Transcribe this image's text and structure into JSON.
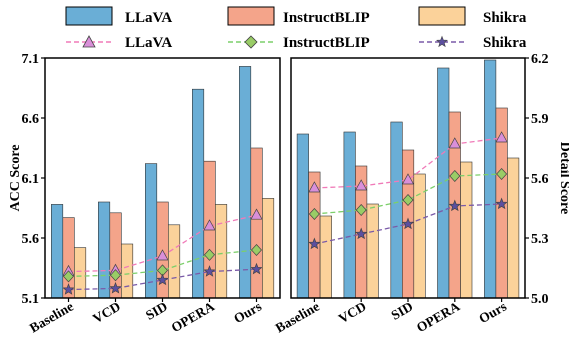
{
  "legend": {
    "bars": [
      "LLaVA",
      "InstructBLIP",
      "Shikra"
    ],
    "lines": [
      "LLaVA",
      "InstructBLIP",
      "Shikra"
    ]
  },
  "colors": {
    "bar_llava": "#6aaed6",
    "bar_instructblip": "#f4a48a",
    "bar_shikra": "#fbd29a",
    "line_llava": "#f07ab8",
    "marker_llava": "#d98fd9",
    "line_instructblip": "#7ccf6a",
    "marker_instructblip": "#99cc66",
    "line_shikra": "#7a5aa8",
    "marker_shikra": "#5c4fa0"
  },
  "chart_data": [
    {
      "type": "bar",
      "ylabel": "ACC Score",
      "ylim": [
        5.1,
        7.1
      ],
      "yticks": [
        "5.1",
        "5.6",
        "6.1",
        "6.6",
        "7.1"
      ],
      "categories": [
        "Baseline",
        "VCD",
        "SID",
        "OPERA",
        "Ours"
      ],
      "series": [
        {
          "name": "LLaVA",
          "values": [
            5.88,
            5.9,
            6.22,
            6.84,
            7.03
          ]
        },
        {
          "name": "InstructBLIP",
          "values": [
            5.77,
            5.81,
            5.9,
            6.24,
            6.35
          ]
        },
        {
          "name": "Shikra",
          "values": [
            5.52,
            5.55,
            5.71,
            5.88,
            5.93
          ]
        }
      ],
      "line_series": [
        {
          "name": "LLaVA",
          "marker": "triangle",
          "values": [
            5.32,
            5.33,
            5.45,
            5.7,
            5.79
          ]
        },
        {
          "name": "InstructBLIP",
          "marker": "diamond",
          "values": [
            5.28,
            5.29,
            5.33,
            5.46,
            5.5
          ]
        },
        {
          "name": "Shikra",
          "marker": "star",
          "values": [
            5.17,
            5.18,
            5.25,
            5.32,
            5.34
          ]
        }
      ]
    },
    {
      "type": "bar",
      "ylabel": "Detail Score",
      "ylim": [
        5.0,
        6.2
      ],
      "yticks": [
        "5.0",
        "5.3",
        "5.6",
        "5.9",
        "6.2"
      ],
      "categories": [
        "Baseline",
        "VCD",
        "SID",
        "OPERA",
        "Ours"
      ],
      "series": [
        {
          "name": "LLaVA",
          "values": [
            5.82,
            5.83,
            5.88,
            6.15,
            6.19
          ]
        },
        {
          "name": "InstructBLIP",
          "values": [
            5.63,
            5.66,
            5.74,
            5.93,
            5.95
          ]
        },
        {
          "name": "Shikra",
          "values": [
            5.41,
            5.47,
            5.62,
            5.68,
            5.7
          ]
        }
      ],
      "line_series": [
        {
          "name": "LLaVA",
          "marker": "triangle",
          "values": [
            5.55,
            5.56,
            5.59,
            5.77,
            5.8
          ]
        },
        {
          "name": "InstructBLIP",
          "marker": "diamond",
          "values": [
            5.42,
            5.44,
            5.49,
            5.61,
            5.62
          ]
        },
        {
          "name": "Shikra",
          "marker": "star",
          "values": [
            5.27,
            5.32,
            5.37,
            5.46,
            5.47
          ]
        }
      ]
    }
  ]
}
